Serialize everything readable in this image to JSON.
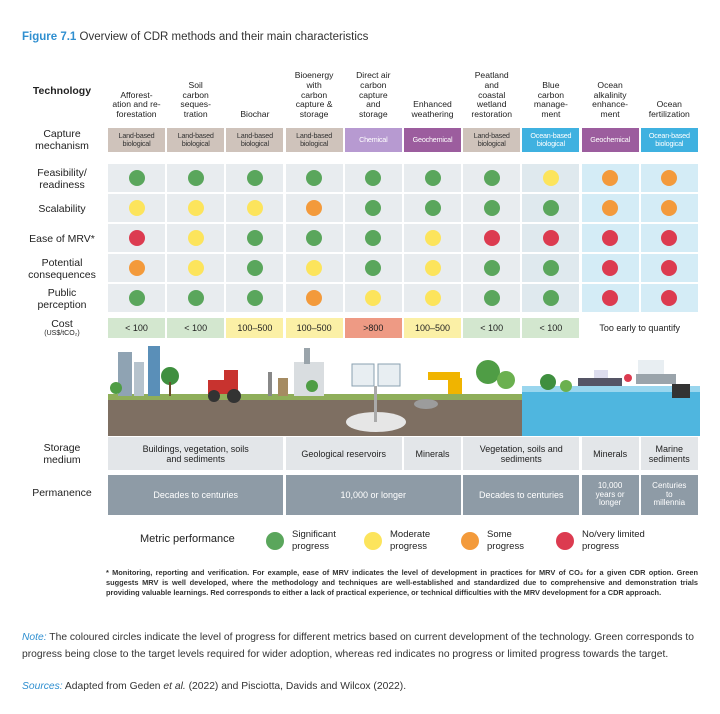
{
  "figure": {
    "label": "Figure 7.1",
    "title": "Overview of CDR methods and their main characteristics"
  },
  "table": {
    "technology_label": "Technology",
    "technologies": [
      "Afforest-\nation and re-\nforestation",
      "Soil\ncarbon\nseques-\ntration",
      "Biochar",
      "Bioenergy\nwith\ncarbon\ncapture &\nstorage",
      "Direct air\ncarbon\ncapture\nand\nstorage",
      "Enhanced\nweathering",
      "Peatland\nand\ncoastal\nwetland\nrestoration",
      "Blue\ncarbon\nmanage-\nment",
      "Ocean\nalkalinity\nenhance-\nment",
      "Ocean\nfertilization"
    ],
    "capture_label": "Capture\nmechanism",
    "capture": [
      {
        "text": "Land-based\nbiological",
        "color": "#cfc3bb"
      },
      {
        "text": "Land-based\nbiological",
        "color": "#cfc3bb"
      },
      {
        "text": "Land-based\nbiological",
        "color": "#cfc3bb"
      },
      {
        "text": "Land-based\nbiological",
        "color": "#cfc3bb"
      },
      {
        "text": "Chemical",
        "color": "#b79ad1"
      },
      {
        "text": "Geochemical",
        "color": "#9c5d9e"
      },
      {
        "text": "Land-based\nbiological",
        "color": "#cfc3bb"
      },
      {
        "text": "Ocean-based\nbiological",
        "color": "#3fb1e0"
      },
      {
        "text": "Geochemical",
        "color": "#9c5d9e"
      },
      {
        "text": "Ocean-based\nbiological",
        "color": "#3fb1e0"
      }
    ],
    "metrics": [
      {
        "label": "Feasibility/\nreadiness",
        "colors": [
          "#5aa65c",
          "#5aa65c",
          "#5aa65c",
          "#5aa65c",
          "#5aa65c",
          "#5aa65c",
          "#5aa65c",
          "#fce45c",
          "#f39a3b",
          "#f39a3b"
        ]
      },
      {
        "label": "Scalability",
        "colors": [
          "#fce45c",
          "#fce45c",
          "#fce45c",
          "#f39a3b",
          "#5aa65c",
          "#5aa65c",
          "#5aa65c",
          "#5aa65c",
          "#f39a3b",
          "#f39a3b"
        ]
      },
      {
        "label": "Ease of MRV*",
        "colors": [
          "#dc3b50",
          "#fce45c",
          "#5aa65c",
          "#5aa65c",
          "#5aa65c",
          "#fce45c",
          "#dc3b50",
          "#dc3b50",
          "#dc3b50",
          "#dc3b50"
        ]
      },
      {
        "label": "Potential\nconsequences",
        "colors": [
          "#f39a3b",
          "#fce45c",
          "#5aa65c",
          "#fce45c",
          "#5aa65c",
          "#fce45c",
          "#5aa65c",
          "#5aa65c",
          "#dc3b50",
          "#dc3b50"
        ]
      },
      {
        "label": "Public\nperception",
        "colors": [
          "#5aa65c",
          "#5aa65c",
          "#5aa65c",
          "#f39a3b",
          "#fce45c",
          "#fce45c",
          "#5aa65c",
          "#5aa65c",
          "#dc3b50",
          "#dc3b50"
        ]
      }
    ],
    "cost": {
      "label": "Cost",
      "unit": "(US$/tCO₂)",
      "cells": [
        {
          "text": "< 100",
          "color": "#d3e7cf",
          "span": 1
        },
        {
          "text": "< 100",
          "color": "#d3e7cf",
          "span": 1
        },
        {
          "text": "100–500",
          "color": "#fbf0a6",
          "span": 1
        },
        {
          "text": "100–500",
          "color": "#fbf0a6",
          "span": 1
        },
        {
          "text": ">800",
          "color": "#ee9a84",
          "span": 1
        },
        {
          "text": "100–500",
          "color": "#fbf0a6",
          "span": 1
        },
        {
          "text": "< 100",
          "color": "#d3e7cf",
          "span": 1
        },
        {
          "text": "< 100",
          "color": "#d3e7cf",
          "span": 1
        },
        {
          "text": "Too early to quantify",
          "color": "#ffffff",
          "span": 2
        }
      ]
    },
    "storage": {
      "label": "Storage\nmedium",
      "cells": [
        {
          "text": "Buildings, vegetation, soils\nand sediments",
          "span": 3
        },
        {
          "text": "Geological reservoirs",
          "span": 2
        },
        {
          "text": "Minerals",
          "span": 1
        },
        {
          "text": "Vegetation, soils and\nsediments",
          "span": 2
        },
        {
          "text": "Minerals",
          "span": 1
        },
        {
          "text": "Marine\nsediments",
          "span": 1
        }
      ]
    },
    "permanence": {
      "label": "Permanence",
      "cells": [
        {
          "text": "Decades to centuries",
          "span": 3
        },
        {
          "text": "10,000 or longer",
          "span": 3
        },
        {
          "text": "Decades to centuries",
          "span": 2
        },
        {
          "text": "10,000\nyears or\nlonger",
          "span": 1
        },
        {
          "text": "Centuries\nto\nmillennia",
          "span": 1
        }
      ]
    }
  },
  "legend": {
    "title": "Metric performance",
    "items": [
      {
        "label": "Significant\nprogress",
        "color": "#5aa65c"
      },
      {
        "label": "Moderate\nprogress",
        "color": "#fce45c"
      },
      {
        "label": "Some\nprogress",
        "color": "#f39a3b"
      },
      {
        "label": "No/very limited\nprogress",
        "color": "#dc3b50"
      }
    ]
  },
  "footnote": "* Monitoring, reporting and verification. For example, ease of MRV indicates the level of development in practices for MRV of CO₂ for a given CDR option. Green suggests MRV is well developed, where the methodology and techniques are well-established and standardized due to comprehensive and demonstration trials providing valuable learnings. Red corresponds to either a lack of practical experience, or technical difficulties with the MRV development for a CDR approach.",
  "note": {
    "label": "Note:",
    "text": " The coloured circles indicate the level of progress for different metrics based on current development of the technology. Green corresponds to progress being close to the target levels required for wider adoption, whereas red indicates no progress or limited progress towards the target."
  },
  "sources": {
    "label": "Sources:",
    "parts": [
      " Adapted from Geden ",
      "et al.",
      " (2022) and Pisciotta, Davids and Wilcox (2022)."
    ]
  }
}
